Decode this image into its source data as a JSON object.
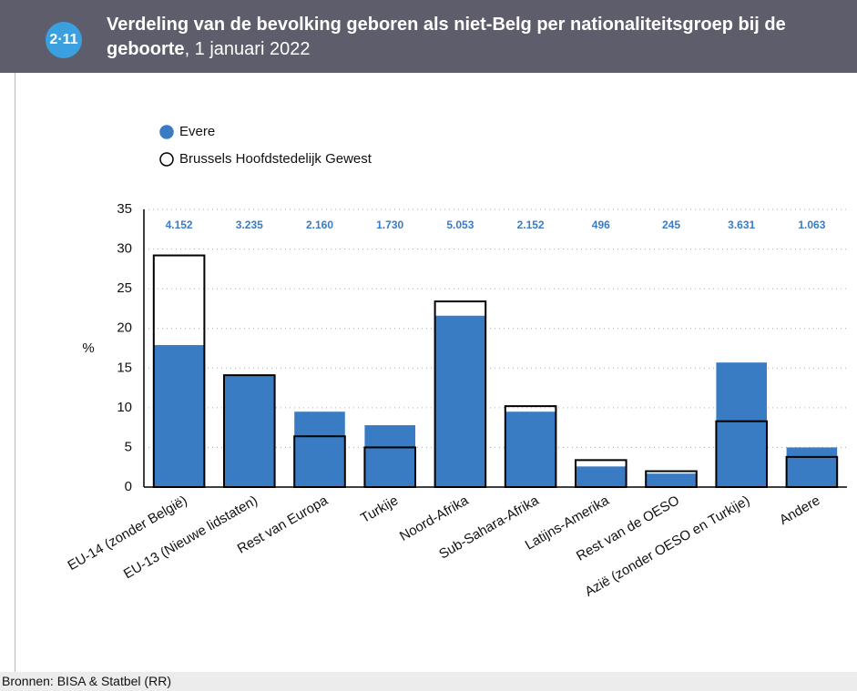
{
  "badge": "2·11",
  "source": "Bronnen: BISA & Statbel (RR)",
  "chart_data": {
    "type": "bar",
    "title": "Verdeling van de bevolking geboren als niet-Belg per nationaliteitsgroep bij de geboorte",
    "subtitle": ", 1 januari 2022",
    "y_label": "%",
    "categories": [
      "EU-14 (zonder België)",
      "EU-13 (Nieuwe lidstaten)",
      "Rest van Europa",
      "Turkije",
      "Noord-Afrika",
      "Sub-Sahara-Afrika",
      "Latijns-Amerika",
      "Rest van de OESO",
      "Azië (zonder OESO en Turkije)",
      "Andere"
    ],
    "series": [
      {
        "name": "Evere",
        "color": "#3a7cc4",
        "style": "filled",
        "values": [
          17.9,
          14.1,
          9.5,
          7.8,
          21.6,
          9.5,
          2.6,
          1.7,
          15.7,
          5.0
        ]
      },
      {
        "name": "Brussels Hoofdstedelijk Gewest",
        "color": "#000000",
        "style": "outline",
        "values": [
          29.2,
          14.1,
          6.4,
          5.0,
          23.4,
          10.2,
          3.4,
          2.0,
          8.3,
          3.8
        ]
      }
    ],
    "counts": {
      "color": "#3a7cc4",
      "values": [
        4152,
        3235,
        2160,
        1730,
        5053,
        2152,
        496,
        245,
        3631,
        1063
      ],
      "value_labels": [
        "4.152",
        "3.235",
        "2.160",
        "1.730",
        "5.053",
        "2.152",
        "496",
        "245",
        "3.631",
        "1.063"
      ]
    },
    "ylim": [
      0,
      35
    ],
    "yticks": [
      0,
      5,
      10,
      15,
      20,
      25,
      30,
      35
    ],
    "grid": true
  }
}
